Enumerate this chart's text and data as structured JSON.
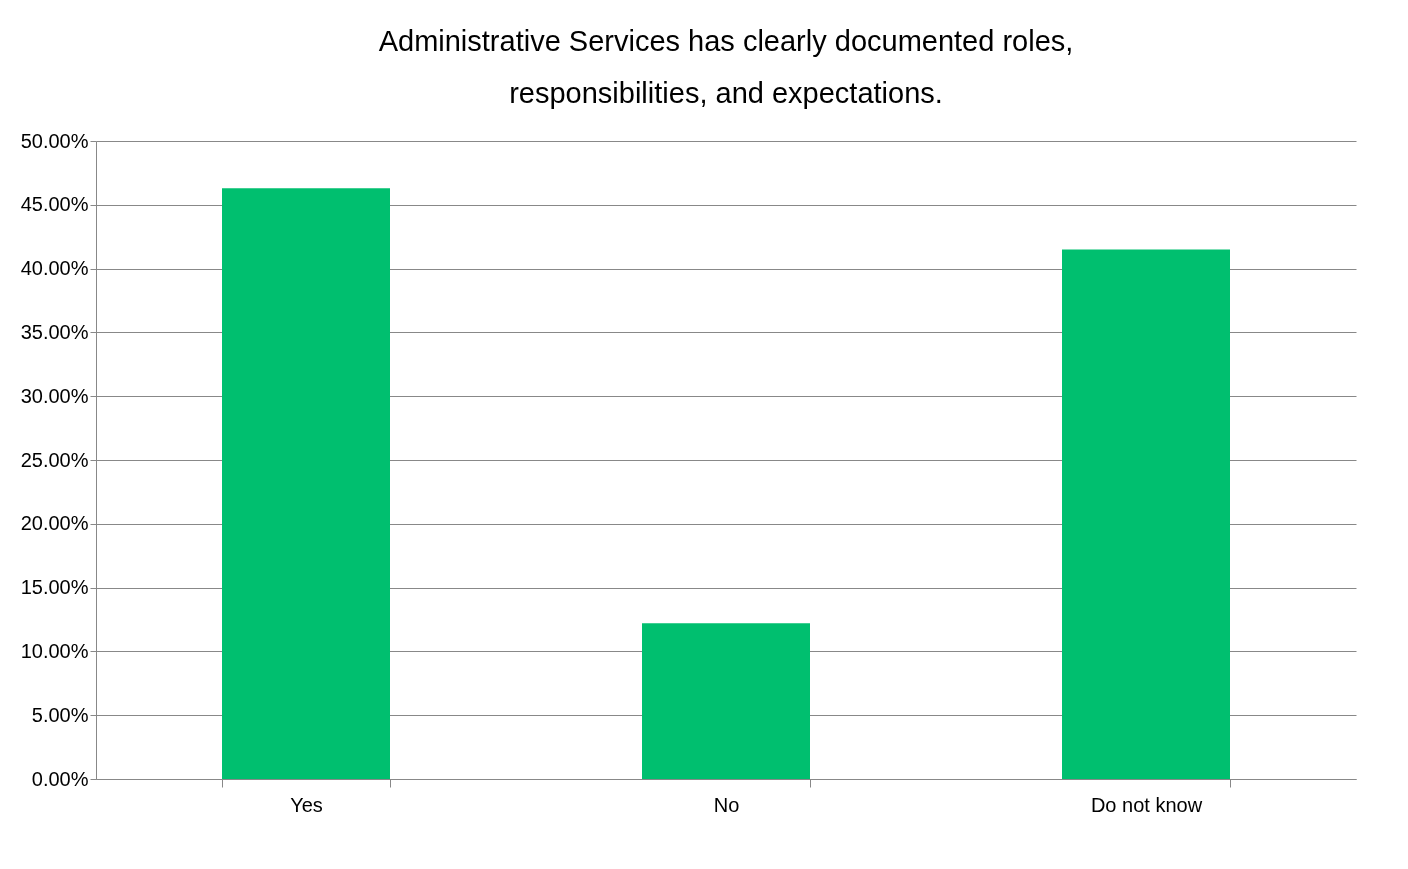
{
  "chart_data": {
    "type": "bar",
    "title": "Administrative Services has clearly documented roles, responsibilities, and expectations.",
    "categories": [
      "Yes",
      "No",
      "Do not know"
    ],
    "values": [
      46.3,
      12.2,
      41.5
    ],
    "color": "#00bf6f",
    "ylim": [
      0,
      50
    ],
    "yticks": [
      {
        "value": 0,
        "label": "0.00%"
      },
      {
        "value": 5,
        "label": "5.00%"
      },
      {
        "value": 10,
        "label": "10.00%"
      },
      {
        "value": 15,
        "label": "15.00%"
      },
      {
        "value": 20,
        "label": "20.00%"
      },
      {
        "value": 25,
        "label": "25.00%"
      },
      {
        "value": 30,
        "label": "30.00%"
      },
      {
        "value": 35,
        "label": "35.00%"
      },
      {
        "value": 40,
        "label": "40.00%"
      },
      {
        "value": 45,
        "label": "45.00%"
      },
      {
        "value": 50,
        "label": "50.00%"
      }
    ],
    "grid": true
  }
}
